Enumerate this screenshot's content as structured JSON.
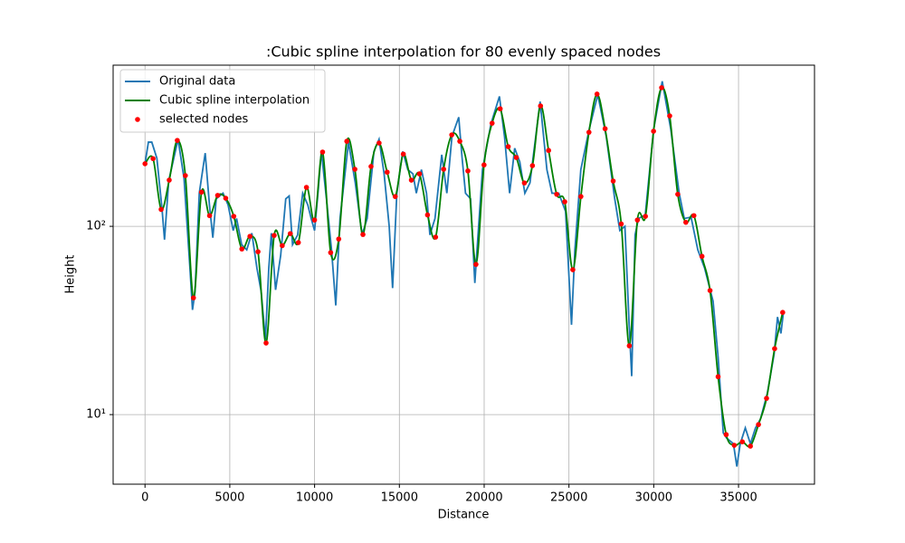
{
  "chart_data": {
    "type": "line",
    "title": ":Cubic spline interpolation for 80 evenly spaced nodes",
    "xlabel": "Distance",
    "ylabel": "Height",
    "xlim": [
      -1880,
      39480
    ],
    "xticks": [
      0,
      5000,
      10000,
      15000,
      20000,
      25000,
      30000,
      35000
    ],
    "ylim": [
      4.27,
      718
    ],
    "yscale": "log",
    "yticks": [
      {
        "value": 10,
        "label": "10¹"
      },
      {
        "value": 100,
        "label": "10²"
      }
    ],
    "grid": true,
    "legend": "upper left",
    "series": [
      {
        "name": "Original data",
        "color": "#1f77b4",
        "type": "line",
        "x": [
          0,
          200,
          400,
          700,
          1000,
          1150,
          1400,
          1950,
          2300,
          2650,
          2800,
          2950,
          3200,
          3550,
          3800,
          4000,
          4200,
          4600,
          4900,
          5200,
          5400,
          5700,
          6000,
          6300,
          6600,
          6850,
          7100,
          7300,
          7450,
          7700,
          8000,
          8300,
          8500,
          8700,
          9000,
          9300,
          9600,
          9800,
          10000,
          10200,
          10400,
          10700,
          11000,
          11250,
          11500,
          12000,
          12400,
          12800,
          13100,
          13500,
          13800,
          14100,
          14400,
          14600,
          14850,
          15200,
          15500,
          15800,
          16000,
          16300,
          16600,
          16800,
          17100,
          17500,
          17800,
          18100,
          18500,
          18700,
          18900,
          19200,
          19450,
          19600,
          19900,
          20400,
          20900,
          21200,
          21500,
          21800,
          22100,
          22400,
          22700,
          23000,
          23300,
          23700,
          24000,
          24400,
          24800,
          25150,
          25350,
          25700,
          26200,
          26700,
          27200,
          27700,
          28000,
          28300,
          28550,
          28700,
          28900,
          29100,
          29500,
          30000,
          30500,
          31000,
          31500,
          31800,
          32200,
          32600,
          33000,
          33500,
          33800,
          34100,
          34300,
          34700,
          34900,
          35100,
          35400,
          35700,
          36000,
          36300,
          36700,
          37100,
          37300,
          37500,
          37650
        ],
        "values": [
          215,
          280,
          280,
          230,
          125,
          85,
          175,
          290,
          180,
          60,
          36,
          45,
          150,
          245,
          130,
          87,
          140,
          150,
          130,
          95,
          110,
          80,
          75,
          92,
          60,
          45,
          25,
          60,
          92,
          46,
          70,
          140,
          145,
          80,
          90,
          150,
          130,
          110,
          95,
          150,
          250,
          140,
          75,
          38,
          110,
          280,
          170,
          90,
          110,
          250,
          290,
          190,
          100,
          47,
          150,
          250,
          200,
          190,
          150,
          200,
          150,
          90,
          110,
          240,
          150,
          300,
          380,
          230,
          150,
          140,
          50,
          80,
          200,
          350,
          490,
          300,
          150,
          260,
          220,
          150,
          170,
          280,
          460,
          200,
          150,
          150,
          120,
          30,
          75,
          200,
          330,
          500,
          300,
          140,
          95,
          100,
          30,
          16,
          90,
          110,
          115,
          330,
          590,
          330,
          150,
          110,
          112,
          75,
          60,
          40,
          20,
          8,
          7.5,
          7,
          5.3,
          7,
          8.5,
          7,
          8.5,
          9.5,
          13,
          21,
          33,
          27,
          35
        ]
      },
      {
        "name": "Cubic spline interpolation",
        "color": "#008000",
        "type": "line",
        "x": [
          0,
          476,
          952,
          1428,
          1904,
          2380,
          2856,
          3332,
          3808,
          4284,
          4760,
          5236,
          5712,
          6188,
          6664,
          7140,
          7616,
          8092,
          8568,
          9044,
          9520,
          9996,
          10472,
          10948,
          11424,
          11900,
          12376,
          12852,
          13328,
          13804,
          14280,
          14756,
          15232,
          15708,
          16184,
          16660,
          17136,
          17612,
          18088,
          18564,
          19040,
          19516,
          19992,
          20468,
          20944,
          21420,
          21896,
          22372,
          22848,
          23324,
          23800,
          24276,
          24752,
          25228,
          25704,
          26180,
          26656,
          27132,
          27608,
          28084,
          28560,
          29036,
          29512,
          29988,
          30464,
          30940,
          31416,
          31892,
          32368,
          32844,
          33320,
          33796,
          34272,
          34748,
          35224,
          35700,
          36176,
          36652,
          37128,
          37604
        ],
        "values": [
          215,
          229,
          123,
          176,
          286,
          186,
          41.7,
          152,
          114,
          146,
          141,
          113,
          75.8,
          88.5,
          73.3,
          24,
          89.5,
          79,
          91.5,
          82,
          161,
          108,
          248,
          72.5,
          85.6,
          283,
          201,
          90.5,
          208,
          277,
          194,
          144,
          242,
          176,
          190,
          115,
          87.6,
          201,
          306,
          283,
          197,
          62.8,
          212,
          353,
          421,
          265,
          232,
          170,
          210,
          436,
          253,
          148,
          135,
          58.8,
          144,
          316,
          504,
          330,
          174,
          103,
          23.2,
          108,
          113,
          320,
          545,
          386,
          148,
          105,
          114,
          69.3,
          45.6,
          15.9,
          7.83,
          6.87,
          7.17,
          6.8,
          8.85,
          12.2,
          22.4,
          34.9
        ]
      },
      {
        "name": "selected nodes",
        "color": "#ff0000",
        "type": "scatter",
        "x": [
          0,
          476,
          952,
          1428,
          1904,
          2380,
          2856,
          3332,
          3808,
          4284,
          4760,
          5236,
          5712,
          6188,
          6664,
          7140,
          7616,
          8092,
          8568,
          9044,
          9520,
          9996,
          10472,
          10948,
          11424,
          11900,
          12376,
          12852,
          13328,
          13804,
          14280,
          14756,
          15232,
          15708,
          16184,
          16660,
          17136,
          17612,
          18088,
          18564,
          19040,
          19516,
          19992,
          20468,
          20944,
          21420,
          21896,
          22372,
          22848,
          23324,
          23800,
          24276,
          24752,
          25228,
          25704,
          26180,
          26656,
          27132,
          27608,
          28084,
          28560,
          29036,
          29512,
          29988,
          30464,
          30940,
          31416,
          31892,
          32368,
          32844,
          33320,
          33796,
          34272,
          34748,
          35224,
          35700,
          36176,
          36652,
          37128,
          37604
        ],
        "values": [
          215,
          229,
          123,
          176,
          286,
          186,
          41.7,
          152,
          114,
          146,
          141,
          113,
          75.8,
          88.5,
          73.3,
          24,
          89.5,
          79,
          91.5,
          82,
          161,
          108,
          248,
          72.5,
          85.6,
          283,
          201,
          90.5,
          208,
          277,
          194,
          144,
          242,
          176,
          190,
          115,
          87.6,
          201,
          306,
          283,
          197,
          62.8,
          212,
          353,
          421,
          265,
          232,
          170,
          210,
          436,
          253,
          148,
          135,
          58.8,
          144,
          316,
          504,
          330,
          174,
          103,
          23.2,
          108,
          113,
          320,
          545,
          386,
          148,
          105,
          114,
          69.3,
          45.6,
          15.9,
          7.83,
          6.87,
          7.17,
          6.8,
          8.85,
          12.2,
          22.4,
          34.9
        ]
      }
    ]
  }
}
